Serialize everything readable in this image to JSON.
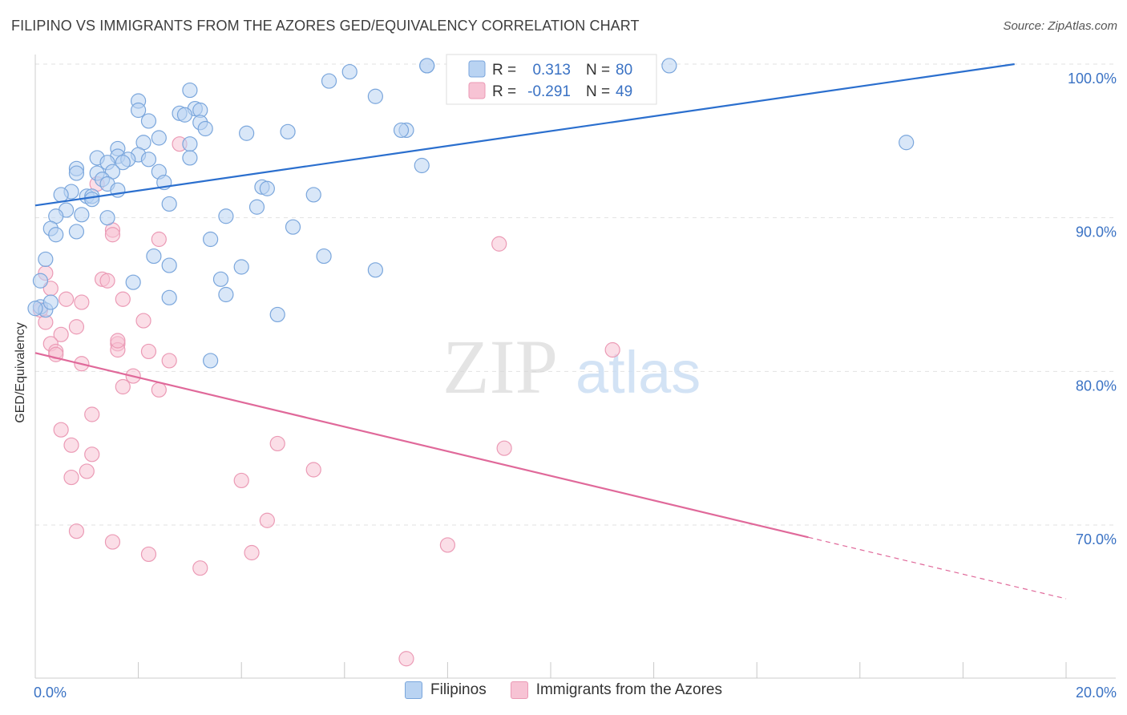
{
  "header": {
    "title": "FILIPINO VS IMMIGRANTS FROM THE AZORES GED/EQUIVALENCY CORRELATION CHART",
    "source": "Source: ZipAtlas.com"
  },
  "watermark": {
    "zip": "ZIP",
    "atlas": "atlas"
  },
  "colors": {
    "blue_fill": "#b9d3f2",
    "blue_stroke": "#7aa6dc",
    "blue_line": "#2b6fce",
    "pink_fill": "#f7c3d4",
    "pink_stroke": "#eb9ab5",
    "pink_line": "#e0699a",
    "axis_text": "#3a72c4",
    "grid": "#e2e2e2"
  },
  "stats_box": {
    "rows": [
      {
        "r_label": "R = ",
        "r_value": " 0.313",
        "n_label": "N = ",
        "n_value": "80"
      },
      {
        "r_label": "R = ",
        "r_value": "-0.291",
        "n_label": "N = ",
        "n_value": "49"
      }
    ]
  },
  "chart_data": {
    "type": "scatter",
    "title": "FILIPINO VS IMMIGRANTS FROM THE AZORES GED/EQUIVALENCY CORRELATION CHART",
    "xlabel": "",
    "ylabel": "GED/Equivalency",
    "xlim": [
      0,
      20
    ],
    "ylim": [
      60,
      100
    ],
    "x_tick_labels": [
      "0.0%",
      "20.0%"
    ],
    "y_tick_labels": [
      "100.0%",
      "90.0%",
      "80.0%",
      "70.0%"
    ],
    "y_ticks": [
      100,
      90,
      80,
      70
    ],
    "legend_position": "bottom-center",
    "grid": true,
    "series": [
      {
        "name": "Filipinos",
        "trend": {
          "x": [
            0,
            19
          ],
          "y": [
            90.8,
            100.0
          ]
        },
        "points": [
          [
            7.6,
            99.9
          ],
          [
            7.6,
            99.9
          ],
          [
            12.3,
            99.9
          ],
          [
            6.1,
            99.5
          ],
          [
            5.7,
            98.9
          ],
          [
            3.0,
            98.3
          ],
          [
            2.0,
            97.6
          ],
          [
            6.6,
            97.9
          ],
          [
            2.0,
            97.0
          ],
          [
            3.1,
            97.1
          ],
          [
            3.2,
            97.0
          ],
          [
            2.8,
            96.8
          ],
          [
            2.9,
            96.7
          ],
          [
            2.2,
            96.3
          ],
          [
            3.2,
            96.2
          ],
          [
            3.3,
            95.8
          ],
          [
            4.9,
            95.6
          ],
          [
            7.2,
            95.7
          ],
          [
            7.1,
            95.7
          ],
          [
            4.1,
            95.5
          ],
          [
            2.4,
            95.2
          ],
          [
            3.0,
            94.8
          ],
          [
            2.1,
            94.9
          ],
          [
            16.9,
            94.9
          ],
          [
            1.6,
            94.5
          ],
          [
            1.6,
            94.0
          ],
          [
            2.0,
            94.1
          ],
          [
            1.2,
            93.9
          ],
          [
            1.8,
            93.8
          ],
          [
            2.2,
            93.8
          ],
          [
            1.4,
            93.6
          ],
          [
            1.7,
            93.6
          ],
          [
            3.0,
            93.9
          ],
          [
            0.8,
            93.2
          ],
          [
            1.2,
            92.9
          ],
          [
            1.5,
            93.0
          ],
          [
            0.8,
            92.9
          ],
          [
            2.4,
            93.0
          ],
          [
            7.5,
            93.4
          ],
          [
            1.3,
            92.5
          ],
          [
            1.4,
            92.2
          ],
          [
            2.5,
            92.3
          ],
          [
            1.6,
            91.8
          ],
          [
            4.4,
            92.0
          ],
          [
            4.5,
            91.9
          ],
          [
            0.7,
            91.7
          ],
          [
            0.5,
            91.5
          ],
          [
            1.0,
            91.4
          ],
          [
            1.1,
            91.4
          ],
          [
            5.4,
            91.5
          ],
          [
            2.6,
            90.9
          ],
          [
            4.3,
            90.7
          ],
          [
            0.6,
            90.5
          ],
          [
            0.9,
            90.2
          ],
          [
            0.4,
            90.1
          ],
          [
            3.7,
            90.1
          ],
          [
            1.4,
            90.0
          ],
          [
            5.0,
            89.4
          ],
          [
            0.3,
            89.3
          ],
          [
            0.8,
            89.1
          ],
          [
            0.4,
            88.9
          ],
          [
            3.4,
            88.6
          ],
          [
            2.3,
            87.5
          ],
          [
            5.6,
            87.5
          ],
          [
            0.2,
            87.3
          ],
          [
            2.6,
            86.9
          ],
          [
            4.0,
            86.8
          ],
          [
            6.6,
            86.6
          ],
          [
            3.6,
            86.0
          ],
          [
            1.9,
            85.8
          ],
          [
            0.1,
            85.9
          ],
          [
            3.7,
            85.0
          ],
          [
            2.6,
            84.8
          ],
          [
            0.1,
            84.2
          ],
          [
            0.2,
            84.0
          ],
          [
            4.7,
            83.7
          ],
          [
            3.4,
            80.7
          ],
          [
            0.0,
            84.1
          ],
          [
            0.3,
            84.5
          ],
          [
            1.1,
            91.2
          ]
        ]
      },
      {
        "name": "Immigrants from the Azores",
        "trend": {
          "x": [
            0,
            15
          ],
          "y": [
            81.2,
            69.2
          ]
        },
        "trend_dashed": {
          "x": [
            15,
            20
          ],
          "y": [
            69.2,
            65.2
          ]
        },
        "points": [
          [
            0.2,
            86.4
          ],
          [
            2.8,
            94.8
          ],
          [
            1.2,
            92.2
          ],
          [
            1.5,
            89.2
          ],
          [
            1.5,
            88.9
          ],
          [
            2.4,
            88.6
          ],
          [
            9.0,
            88.3
          ],
          [
            0.3,
            85.4
          ],
          [
            1.3,
            86.0
          ],
          [
            1.4,
            85.9
          ],
          [
            0.6,
            84.7
          ],
          [
            0.9,
            84.5
          ],
          [
            1.7,
            84.7
          ],
          [
            2.1,
            83.3
          ],
          [
            0.8,
            82.9
          ],
          [
            0.5,
            82.4
          ],
          [
            0.3,
            81.8
          ],
          [
            0.4,
            81.3
          ],
          [
            1.6,
            81.8
          ],
          [
            1.6,
            81.4
          ],
          [
            2.2,
            81.3
          ],
          [
            11.2,
            81.4
          ],
          [
            0.4,
            81.1
          ],
          [
            0.9,
            80.5
          ],
          [
            2.6,
            80.7
          ],
          [
            1.9,
            79.7
          ],
          [
            1.7,
            79.0
          ],
          [
            2.4,
            78.8
          ],
          [
            1.1,
            77.2
          ],
          [
            0.5,
            76.2
          ],
          [
            0.7,
            75.2
          ],
          [
            4.7,
            75.3
          ],
          [
            9.1,
            75.0
          ],
          [
            1.1,
            74.6
          ],
          [
            5.4,
            73.6
          ],
          [
            1.0,
            73.5
          ],
          [
            0.7,
            73.1
          ],
          [
            4.0,
            72.9
          ],
          [
            4.5,
            70.3
          ],
          [
            0.8,
            69.6
          ],
          [
            1.5,
            68.9
          ],
          [
            8.0,
            68.7
          ],
          [
            4.2,
            68.2
          ],
          [
            2.2,
            68.1
          ],
          [
            3.2,
            67.2
          ],
          [
            7.2,
            61.3
          ],
          [
            0.1,
            84.0
          ],
          [
            0.2,
            83.2
          ],
          [
            1.6,
            82.0
          ]
        ]
      }
    ]
  }
}
